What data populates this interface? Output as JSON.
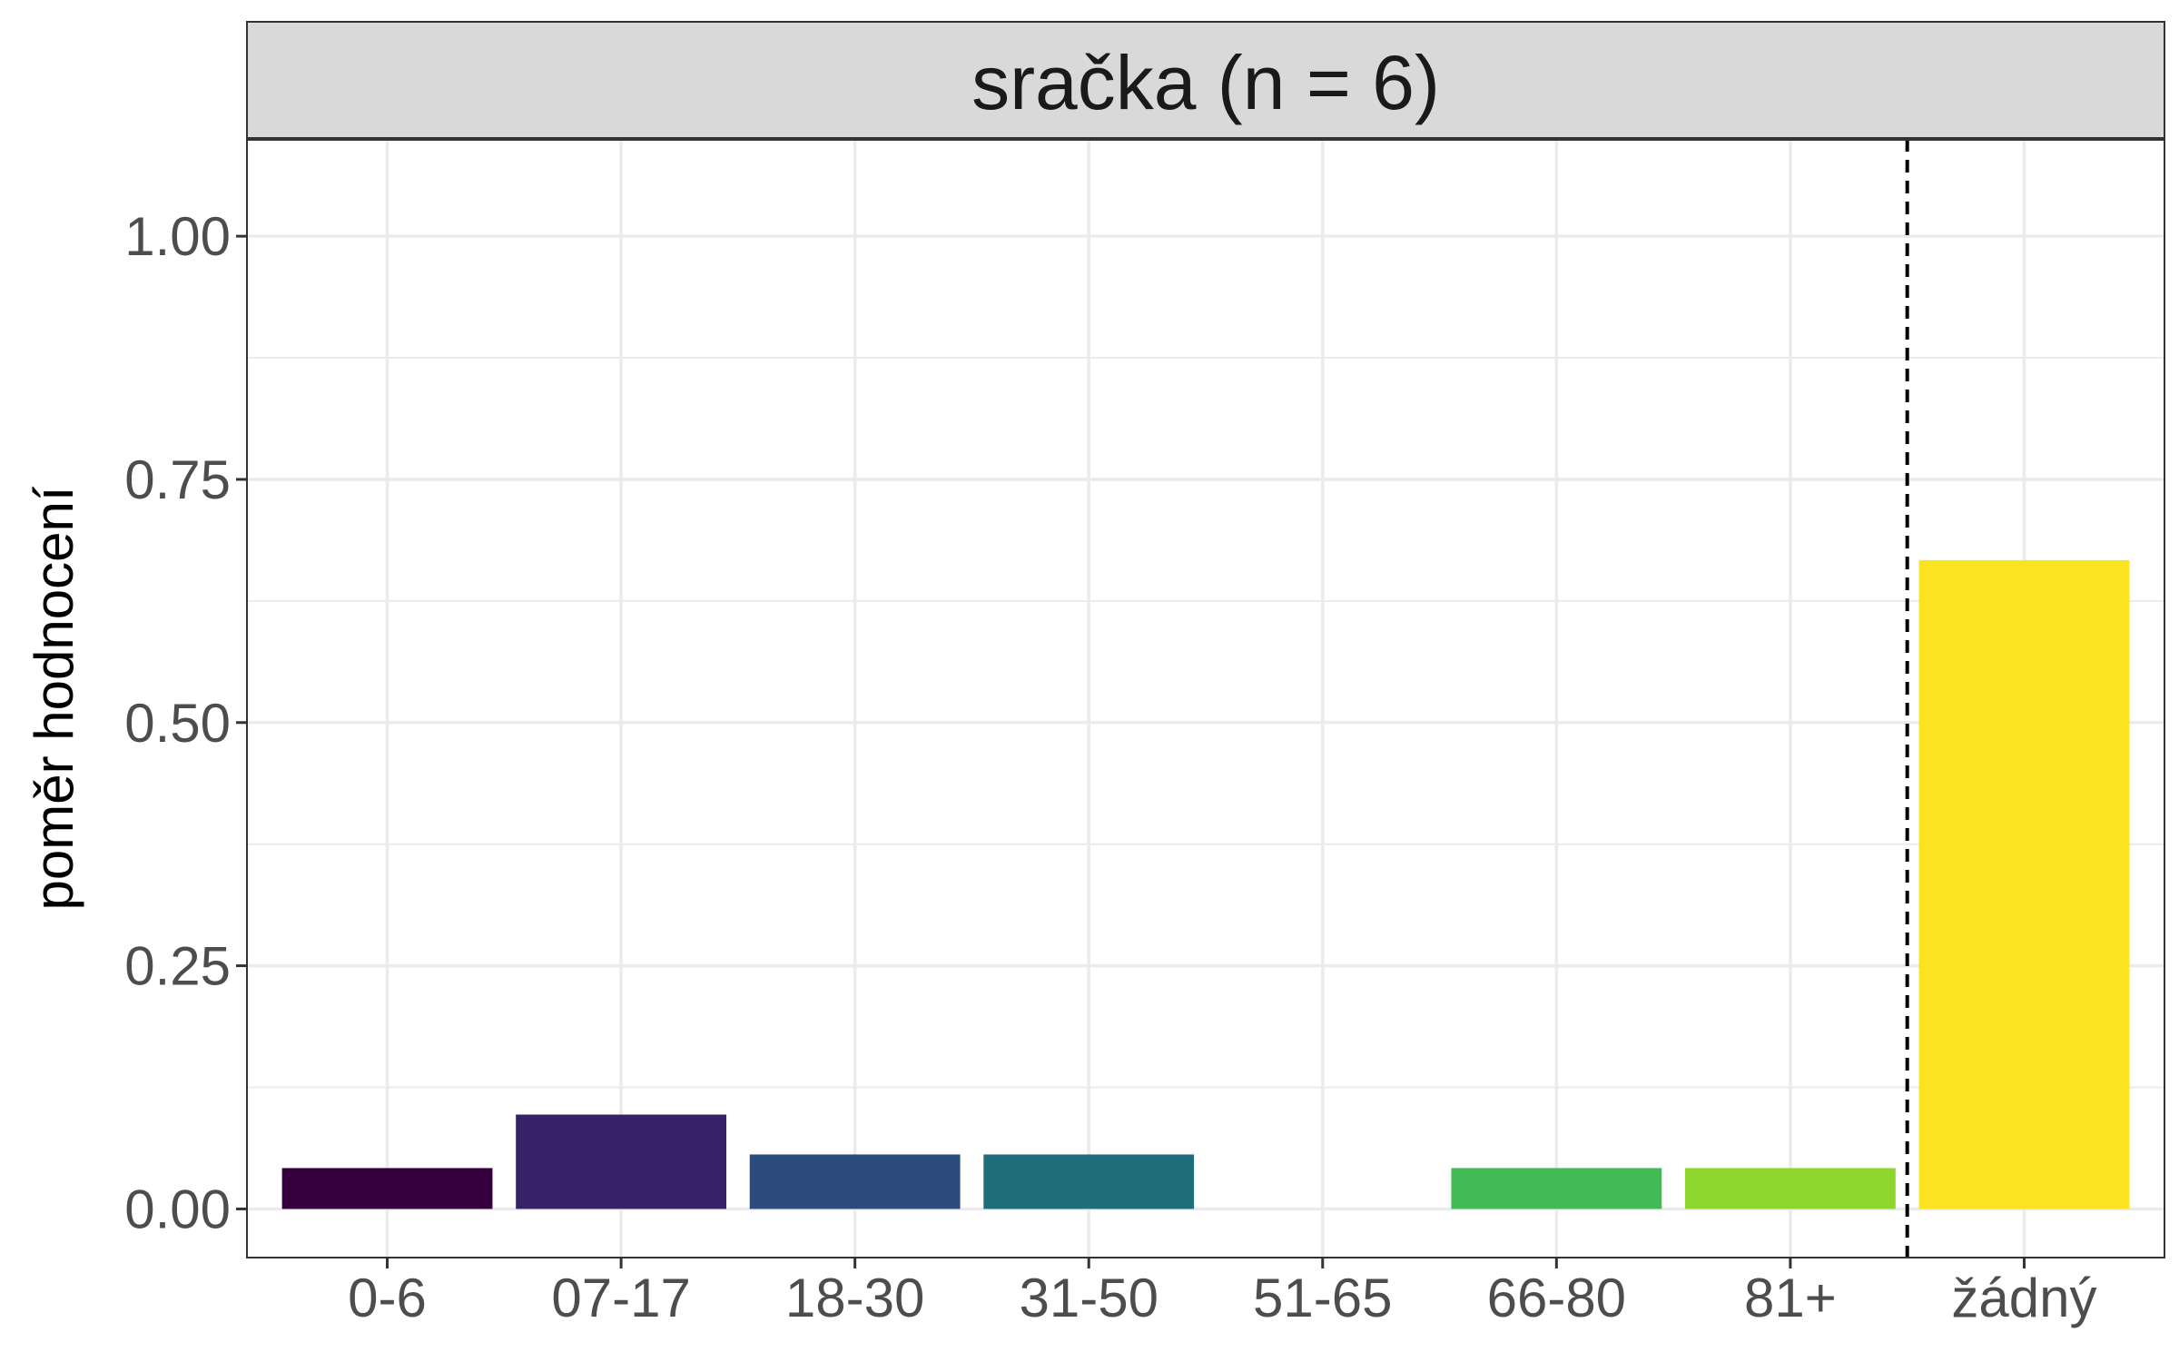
{
  "chart_data": {
    "type": "bar",
    "title": "sračka (n = 6)",
    "xlabel": "",
    "ylabel": "poměr hodnocení",
    "ylim": [
      -0.05,
      1.1
    ],
    "y_ticks": [
      "0.00",
      "0.25",
      "0.50",
      "0.75",
      "1.00"
    ],
    "y_tick_values": [
      0,
      0.25,
      0.5,
      0.75,
      1.0
    ],
    "categories": [
      "0-6",
      "07-17",
      "18-30",
      "31-50",
      "51-65",
      "66-80",
      "81+",
      "žádný"
    ],
    "values": [
      0.042,
      0.097,
      0.056,
      0.056,
      0.0,
      0.042,
      0.042,
      0.667
    ],
    "colors": [
      "#35003d",
      "#372268",
      "#2a4b7c",
      "#206e7b",
      "#1e9a8a",
      "#42ba57",
      "#8ed62d",
      "#fbe31f"
    ],
    "dashed_line_between": [
      "81+",
      "žádný"
    ],
    "grid": true,
    "legend": "none"
  }
}
